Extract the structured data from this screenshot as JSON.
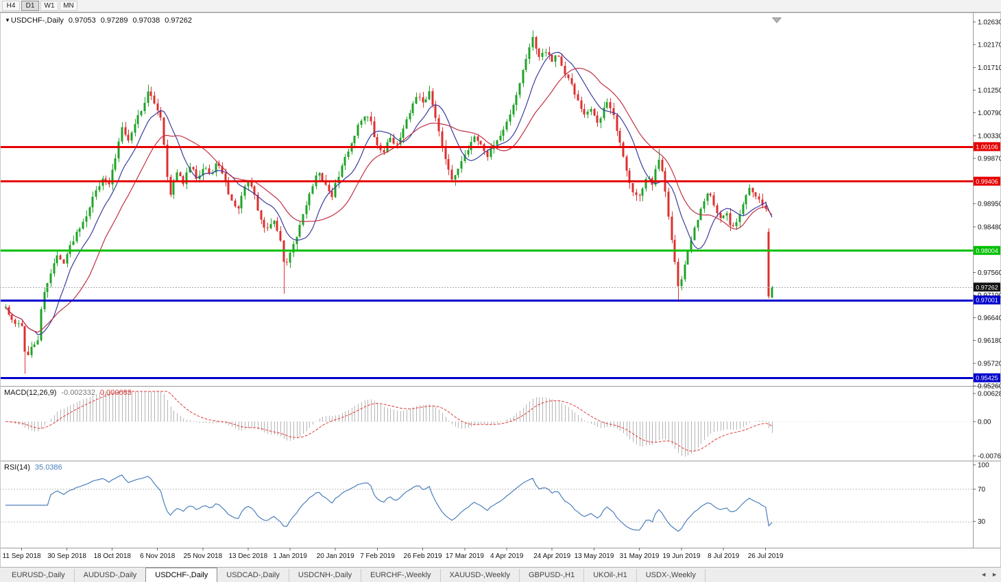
{
  "toolbar": {
    "periods": [
      {
        "label": "H4",
        "active": false
      },
      {
        "label": "D1",
        "active": true
      },
      {
        "label": "W1",
        "active": false
      },
      {
        "label": "MN",
        "active": false
      }
    ]
  },
  "chart_title": {
    "marker": "▼",
    "symbol": "USDCHF-,Daily",
    "open": "0.97053",
    "high": "0.97289",
    "low": "0.97038",
    "close": "0.97262"
  },
  "chart_data": {
    "type": "candlestick",
    "title": "USDCHF-,Daily",
    "symbol": "USDCHF-",
    "period": "Daily",
    "ohlc": {
      "open": 0.97053,
      "high": 0.97289,
      "low": 0.97038,
      "close": 0.97262
    },
    "up_color": "#1fa328",
    "down_color": "#dd2f2f",
    "price_axis": {
      "view_max": 1.0277,
      "view_min": 0.9526,
      "labels": [
        "1.02630",
        "1.02170",
        "1.01710",
        "1.01250",
        "1.00790",
        "1.00330",
        "0.99870",
        "0.98950",
        "0.98480",
        "0.97560",
        "0.97100",
        "0.96640",
        "0.96180",
        "0.95720",
        "0.95260"
      ]
    },
    "levels": [
      {
        "price": 1.00106,
        "label": "1.00106",
        "color": "#e60000"
      },
      {
        "price": 0.99406,
        "label": "0.99406",
        "color": "#e60000"
      },
      {
        "price": 0.98004,
        "label": "0.98004",
        "color": "#00c000"
      },
      {
        "price": 0.97001,
        "label": "0.97001",
        "color": "#0000cc"
      },
      {
        "price": 0.95425,
        "label": "0.95425",
        "color": "#0000cc"
      }
    ],
    "current_price": {
      "value": 0.97262,
      "label": "0.97262"
    },
    "candles": {
      "count": 238,
      "seed": 42,
      "noise": 0.0009,
      "wick": 0.0012,
      "close_waypoints": [
        [
          0.0,
          0.9685
        ],
        [
          0.011,
          0.9648
        ],
        [
          0.02,
          0.966
        ],
        [
          0.027,
          0.9578
        ],
        [
          0.033,
          0.96
        ],
        [
          0.042,
          0.9618
        ],
        [
          0.048,
          0.97
        ],
        [
          0.058,
          0.9752
        ],
        [
          0.067,
          0.979
        ],
        [
          0.075,
          0.9775
        ],
        [
          0.082,
          0.98
        ],
        [
          0.093,
          0.9838
        ],
        [
          0.104,
          0.9868
        ],
        [
          0.116,
          0.9915
        ],
        [
          0.127,
          0.995
        ],
        [
          0.134,
          0.9928
        ],
        [
          0.143,
          0.9985
        ],
        [
          0.152,
          1.0055
        ],
        [
          0.161,
          1.002
        ],
        [
          0.17,
          1.0065
        ],
        [
          0.179,
          1.009
        ],
        [
          0.186,
          1.0122
        ],
        [
          0.195,
          1.0095
        ],
        [
          0.202,
          1.0078
        ],
        [
          0.208,
          1.0
        ],
        [
          0.214,
          0.9905
        ],
        [
          0.223,
          0.9958
        ],
        [
          0.232,
          0.9938
        ],
        [
          0.241,
          0.9972
        ],
        [
          0.25,
          0.9945
        ],
        [
          0.259,
          0.9975
        ],
        [
          0.268,
          0.995
        ],
        [
          0.277,
          0.9983
        ],
        [
          0.286,
          0.9938
        ],
        [
          0.295,
          0.99
        ],
        [
          0.304,
          0.9885
        ],
        [
          0.313,
          0.9938
        ],
        [
          0.322,
          0.9928
        ],
        [
          0.331,
          0.987
        ],
        [
          0.34,
          0.984
        ],
        [
          0.349,
          0.9863
        ],
        [
          0.358,
          0.9828
        ],
        [
          0.364,
          0.9762
        ],
        [
          0.371,
          0.979
        ],
        [
          0.38,
          0.983
        ],
        [
          0.389,
          0.988
        ],
        [
          0.398,
          0.992
        ],
        [
          0.407,
          0.9958
        ],
        [
          0.416,
          0.994
        ],
        [
          0.425,
          0.9906
        ],
        [
          0.434,
          0.995
        ],
        [
          0.443,
          0.9988
        ],
        [
          0.452,
          1.002
        ],
        [
          0.461,
          1.0058
        ],
        [
          0.47,
          1.0078
        ],
        [
          0.477,
          1.0058
        ],
        [
          0.484,
          1.0012
        ],
        [
          0.493,
          1.0
        ],
        [
          0.502,
          1.003
        ],
        [
          0.511,
          1.0012
        ],
        [
          0.52,
          1.0048
        ],
        [
          0.529,
          1.0088
        ],
        [
          0.538,
          1.0118
        ],
        [
          0.547,
          1.0098
        ],
        [
          0.553,
          1.0122
        ],
        [
          0.56,
          1.0078
        ],
        [
          0.569,
          1.002
        ],
        [
          0.578,
          0.996
        ],
        [
          0.584,
          0.9936
        ],
        [
          0.593,
          0.998
        ],
        [
          0.602,
          1.0
        ],
        [
          0.611,
          1.0034
        ],
        [
          0.62,
          1.0014
        ],
        [
          0.629,
          0.999
        ],
        [
          0.638,
          1.0018
        ],
        [
          0.647,
          1.0034
        ],
        [
          0.656,
          1.0068
        ],
        [
          0.665,
          1.0108
        ],
        [
          0.674,
          1.0158
        ],
        [
          0.683,
          1.0213
        ],
        [
          0.688,
          1.0232
        ],
        [
          0.695,
          1.0194
        ],
        [
          0.704,
          1.0208
        ],
        [
          0.713,
          1.0185
        ],
        [
          0.72,
          1.0202
        ],
        [
          0.729,
          1.0155
        ],
        [
          0.738,
          1.014
        ],
        [
          0.747,
          1.01
        ],
        [
          0.756,
          1.007
        ],
        [
          0.765,
          1.009
        ],
        [
          0.774,
          1.005
        ],
        [
          0.783,
          1.0108
        ],
        [
          0.792,
          1.0078
        ],
        [
          0.801,
          1.002
        ],
        [
          0.81,
          0.996
        ],
        [
          0.819,
          0.992
        ],
        [
          0.828,
          0.991
        ],
        [
          0.837,
          0.995
        ],
        [
          0.844,
          0.993
        ],
        [
          0.851,
          0.9988
        ],
        [
          0.858,
          0.995
        ],
        [
          0.865,
          0.987
        ],
        [
          0.872,
          0.979
        ],
        [
          0.878,
          0.9722
        ],
        [
          0.885,
          0.976
        ],
        [
          0.892,
          0.981
        ],
        [
          0.901,
          0.9855
        ],
        [
          0.91,
          0.99
        ],
        [
          0.917,
          0.9924
        ],
        [
          0.924,
          0.989
        ],
        [
          0.931,
          0.986
        ],
        [
          0.94,
          0.9878
        ],
        [
          0.947,
          0.9846
        ],
        [
          0.954,
          0.9862
        ],
        [
          0.963,
          0.99
        ],
        [
          0.97,
          0.9928
        ],
        [
          0.977,
          0.991
        ],
        [
          0.984,
          0.99
        ],
        [
          0.991,
          0.9888
        ],
        [
          0.996,
          0.9845
        ],
        [
          1.0,
          0.9726
        ]
      ],
      "wick_overrides": [
        {
          "f": 0.027,
          "low": 0.9551
        },
        {
          "f": 0.186,
          "high": 1.0136
        },
        {
          "f": 0.364,
          "low": 0.9713
        },
        {
          "f": 0.688,
          "high": 1.0246
        },
        {
          "f": 0.851,
          "high": 1.0006
        },
        {
          "f": 0.878,
          "low": 0.9696
        }
      ],
      "last_two": [
        {
          "o": 0.9838,
          "h": 0.9845,
          "l": 0.9703,
          "c": 0.9707
        },
        {
          "o": 0.97053,
          "h": 0.97289,
          "l": 0.97038,
          "c": 0.97262
        }
      ]
    },
    "moving_averages": [
      {
        "period": 10,
        "color": "#3a3a9e"
      },
      {
        "period": 21,
        "color": "#c22e44"
      }
    ],
    "date_axis": [
      {
        "i": 5,
        "label": "11 Sep 2018"
      },
      {
        "i": 19,
        "label": "30 Sep 2018"
      },
      {
        "i": 33,
        "label": "18 Oct 2018"
      },
      {
        "i": 47,
        "label": "6 Nov 2018"
      },
      {
        "i": 61,
        "label": "25 Nov 2018"
      },
      {
        "i": 75,
        "label": "13 Dec 2018"
      },
      {
        "i": 88,
        "label": "1 Jan 2019"
      },
      {
        "i": 102,
        "label": "20 Jan 2019"
      },
      {
        "i": 115,
        "label": "7 Feb 2019"
      },
      {
        "i": 129,
        "label": "26 Feb 2019"
      },
      {
        "i": 142,
        "label": "17 Mar 2019"
      },
      {
        "i": 155,
        "label": "4 Apr 2019"
      },
      {
        "i": 169,
        "label": "24 Apr 2019"
      },
      {
        "i": 182,
        "label": "13 May 2019"
      },
      {
        "i": 196,
        "label": "31 May 2019"
      },
      {
        "i": 209,
        "label": "19 Jun 2019"
      },
      {
        "i": 222,
        "label": "8 Jul 2019"
      },
      {
        "i": 235,
        "label": "26 Jul 2019"
      }
    ],
    "macd": {
      "name": "MACD(12,26,9)",
      "value_main": "-0.002332",
      "value_signal": "0.000083",
      "fast": 12,
      "slow": 26,
      "signal": 9,
      "axis": {
        "max": 0.006286,
        "min": -0.00762,
        "labels": {
          "top": "0.006286",
          "zero": "0.00",
          "bottom": "-0.007620"
        }
      },
      "histogram_color": "#b4b4b4",
      "signal_color": "#e03a3a"
    },
    "rsi": {
      "name": "RSI(14)",
      "value": "35.0386",
      "period": 14,
      "levels": [
        70,
        30
      ],
      "axis_labels": [
        "100",
        "70",
        "30"
      ],
      "line_color": "#4a7ebb",
      "level_color": "#c0c0c0"
    },
    "shift_marker": true
  },
  "tabs": {
    "items": [
      {
        "label": "EURUSD-,Daily",
        "active": false
      },
      {
        "label": "AUDUSD-,Daily",
        "active": false
      },
      {
        "label": "USDCHF-,Daily",
        "active": true
      },
      {
        "label": "USDCAD-,Daily",
        "active": false
      },
      {
        "label": "USDCNH-,Daily",
        "active": false
      },
      {
        "label": "EURCHF-,Weekly",
        "active": false
      },
      {
        "label": "XAUUSD-,Weekly",
        "active": false
      },
      {
        "label": "GBPUSD-,H1",
        "active": false
      },
      {
        "label": "UKOil-,H1",
        "active": false
      },
      {
        "label": "USDX-,Weekly",
        "active": false
      }
    ],
    "scroll_left": "◄",
    "scroll_right": "►"
  }
}
